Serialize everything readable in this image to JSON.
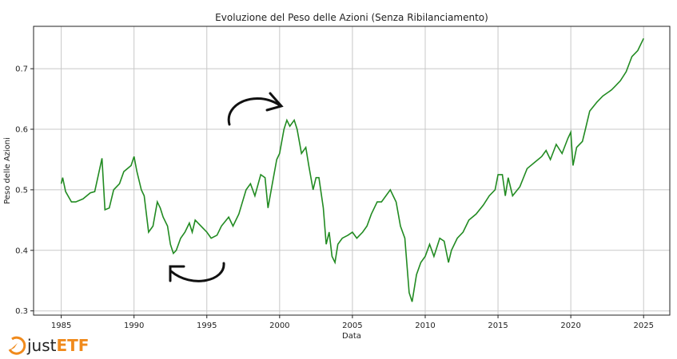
{
  "chart_data": {
    "type": "line",
    "title": "Evoluzione del Peso delle Azioni (Senza Ribilanciamento)",
    "xlabel": "Data",
    "ylabel": "Peso delle Azioni",
    "xlim": [
      1983.1,
      2026.8
    ],
    "ylim": [
      0.293,
      0.77
    ],
    "xticks": [
      "1985",
      "1990",
      "1995",
      "2000",
      "2005",
      "2010",
      "2015",
      "2020",
      "2025"
    ],
    "yticks": [
      "0.3",
      "0.4",
      "0.5",
      "0.6",
      "0.7"
    ],
    "grid": true,
    "color": "#228b22",
    "x": [
      1985.0,
      1985.1,
      1985.3,
      1985.7,
      1986.0,
      1986.5,
      1987.0,
      1987.3,
      1987.8,
      1988.0,
      1988.3,
      1988.6,
      1989.0,
      1989.3,
      1989.8,
      1990.0,
      1990.2,
      1990.5,
      1990.7,
      1991.0,
      1991.3,
      1991.6,
      1991.8,
      1992.0,
      1992.3,
      1992.5,
      1992.7,
      1992.9,
      1993.2,
      1993.5,
      1993.8,
      1994.0,
      1994.2,
      1994.6,
      1995.0,
      1995.3,
      1995.7,
      1996.0,
      1996.5,
      1996.8,
      1997.2,
      1997.7,
      1998.0,
      1998.3,
      1998.7,
      1999.0,
      1999.2,
      1999.5,
      1999.8,
      2000.0,
      2000.3,
      2000.5,
      2000.7,
      2001.0,
      2001.2,
      2001.5,
      2001.8,
      2002.0,
      2002.3,
      2002.5,
      2002.7,
      2003.0,
      2003.2,
      2003.4,
      2003.6,
      2003.8,
      2004.0,
      2004.3,
      2004.7,
      2005.0,
      2005.3,
      2005.7,
      2006.0,
      2006.3,
      2006.7,
      2007.0,
      2007.3,
      2007.6,
      2007.8,
      2008.0,
      2008.3,
      2008.6,
      2008.9,
      2009.1,
      2009.4,
      2009.7,
      2010.0,
      2010.3,
      2010.6,
      2011.0,
      2011.3,
      2011.6,
      2011.8,
      2012.2,
      2012.6,
      2013.0,
      2013.5,
      2014.0,
      2014.4,
      2014.8,
      2015.0,
      2015.3,
      2015.5,
      2015.7,
      2016.0,
      2016.5,
      2017.0,
      2017.5,
      2018.0,
      2018.3,
      2018.6,
      2019.0,
      2019.4,
      2019.8,
      2020.0,
      2020.15,
      2020.4,
      2020.8,
      2021.0,
      2021.3,
      2021.8,
      2022.2,
      2022.5,
      2022.8,
      2023.0,
      2023.4,
      2023.8,
      2024.2,
      2024.6,
      2025.0
    ],
    "y": [
      0.51,
      0.52,
      0.497,
      0.48,
      0.48,
      0.485,
      0.495,
      0.497,
      0.552,
      0.467,
      0.47,
      0.5,
      0.51,
      0.53,
      0.54,
      0.555,
      0.53,
      0.5,
      0.49,
      0.43,
      0.44,
      0.48,
      0.47,
      0.455,
      0.44,
      0.41,
      0.395,
      0.4,
      0.42,
      0.43,
      0.445,
      0.43,
      0.45,
      0.44,
      0.43,
      0.42,
      0.425,
      0.44,
      0.455,
      0.44,
      0.46,
      0.5,
      0.51,
      0.49,
      0.525,
      0.52,
      0.47,
      0.51,
      0.55,
      0.56,
      0.6,
      0.615,
      0.605,
      0.615,
      0.6,
      0.56,
      0.57,
      0.54,
      0.5,
      0.52,
      0.52,
      0.47,
      0.41,
      0.43,
      0.39,
      0.38,
      0.41,
      0.42,
      0.425,
      0.43,
      0.42,
      0.43,
      0.44,
      0.46,
      0.48,
      0.48,
      0.49,
      0.5,
      0.49,
      0.48,
      0.44,
      0.42,
      0.33,
      0.315,
      0.36,
      0.38,
      0.39,
      0.41,
      0.39,
      0.42,
      0.415,
      0.38,
      0.4,
      0.42,
      0.43,
      0.45,
      0.46,
      0.475,
      0.49,
      0.5,
      0.525,
      0.525,
      0.49,
      0.52,
      0.49,
      0.505,
      0.535,
      0.545,
      0.555,
      0.565,
      0.55,
      0.575,
      0.56,
      0.585,
      0.595,
      0.54,
      0.57,
      0.58,
      0.6,
      0.63,
      0.645,
      0.655,
      0.66,
      0.665,
      0.67,
      0.68,
      0.695,
      0.72,
      0.73,
      0.75
    ]
  },
  "logo": {
    "text_a": "just",
    "text_b": "ETF"
  }
}
